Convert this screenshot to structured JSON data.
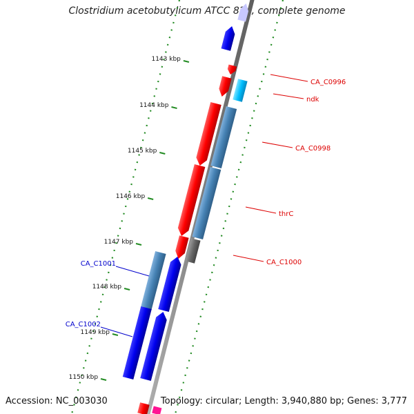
{
  "title": "Clostridium acetobutylicum ATCC 824, complete genome",
  "accession": "Accession: NC_003030",
  "topology": "Topology: circular; Length: 3,940,880 bp; Genes: 3,777",
  "ticks": [
    {
      "label": "1143 kbp"
    },
    {
      "label": "1144 kbp"
    },
    {
      "label": "1145 kbp"
    },
    {
      "label": "1146 kbp"
    },
    {
      "label": "1147 kbp"
    },
    {
      "label": "1148 kbp"
    },
    {
      "label": "1149 kbp"
    },
    {
      "label": "1150 kbp"
    }
  ],
  "forward_labels": [
    "CA_C0996",
    "ndk",
    "CA_C0998",
    "thrC",
    "CA_C1000"
  ],
  "reverse_labels": [
    "CA_C1001",
    "CA_C1002"
  ],
  "colors": {
    "backbone": "#8a8a8a",
    "forward_cds": "#ff0000",
    "reverse_cds": "#0000ee",
    "blast_hit": "#4682b4",
    "ndk_hit": "#00bfff",
    "grey_hit": "#666666",
    "lavender_hit": "#c8c8ff",
    "magenta_hit": "#ff1493",
    "forward_label": "#dd0000",
    "reverse_label": "#0000cc",
    "dotted_track": "#228b22"
  }
}
